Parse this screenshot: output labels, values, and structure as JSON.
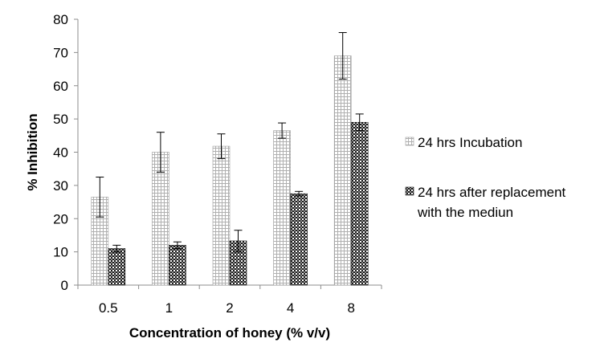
{
  "chart_data": {
    "type": "bar",
    "title": "",
    "xlabel": "Concentration of honey (% v/v)",
    "ylabel": "% Inhibition",
    "categories": [
      "0.5",
      "1",
      "2",
      "4",
      "8"
    ],
    "ylim": [
      0,
      80
    ],
    "yticks": [
      "0",
      "10",
      "20",
      "30",
      "40",
      "50",
      "60",
      "70",
      "80"
    ],
    "grid": false,
    "legend_position": "right",
    "series": [
      {
        "name": "24 hrs Incubation",
        "values": [
          26.5,
          40,
          41.8,
          46.5,
          69
        ],
        "error": [
          6,
          6,
          3.7,
          2.3,
          7
        ],
        "pattern": "light-grid",
        "color": "#bdbdbd"
      },
      {
        "name": "24 hrs after replacement with the mediun",
        "name_lines": [
          "24 hrs after replacement",
          "with the mediun"
        ],
        "values": [
          11,
          12,
          13.3,
          27.5,
          49
        ],
        "error": [
          1,
          1,
          3.2,
          0.7,
          2.5
        ],
        "pattern": "dark-checker",
        "color": "#1a1a1a"
      }
    ]
  }
}
